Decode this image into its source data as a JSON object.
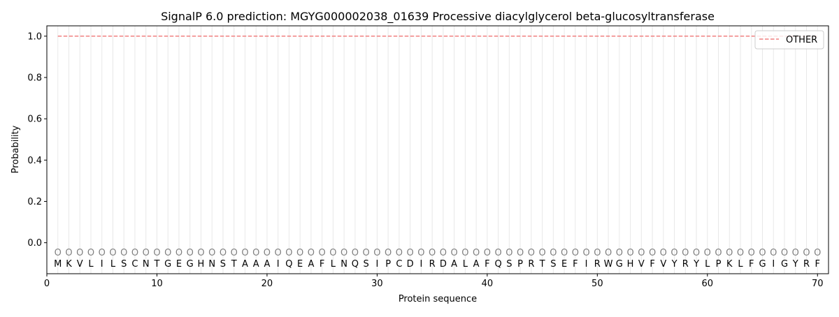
{
  "chart_data": {
    "type": "line",
    "title": "SignalP 6.0 prediction: MGYG000002038_01639 Processive diacylglycerol beta-glucosyltransferase",
    "xlabel": "Protein sequence",
    "ylabel": "Probability",
    "xlim": [
      0,
      71
    ],
    "ylim": [
      -0.15,
      1.05
    ],
    "xticks": [
      0,
      10,
      20,
      30,
      40,
      50,
      60,
      70
    ],
    "yticks": [
      0.0,
      0.2,
      0.4,
      0.6,
      0.8,
      1.0
    ],
    "grid": "vertical lines at each residue",
    "legend_placement": "top-right",
    "sequence": [
      "M",
      "K",
      "V",
      "L",
      "I",
      "L",
      "S",
      "C",
      "N",
      "T",
      "G",
      "E",
      "G",
      "H",
      "N",
      "S",
      "T",
      "A",
      "A",
      "A",
      "I",
      "Q",
      "E",
      "A",
      "F",
      "L",
      "N",
      "Q",
      "S",
      "I",
      "P",
      "C",
      "D",
      "I",
      "R",
      "D",
      "A",
      "L",
      "A",
      "F",
      "Q",
      "S",
      "P",
      "R",
      "T",
      "S",
      "E",
      "F",
      "I",
      "R",
      "W",
      "G",
      "H",
      "V",
      "F",
      "V",
      "Y",
      "R",
      "Y",
      "L",
      "P",
      "K",
      "L",
      "F",
      "G",
      "I",
      "G",
      "Y",
      "R",
      "F"
    ],
    "region_label": "O",
    "series": [
      {
        "name": "OTHER",
        "color": "#f08080",
        "style": "dashed",
        "x_range": [
          1,
          70
        ],
        "value": 1.0
      }
    ]
  }
}
